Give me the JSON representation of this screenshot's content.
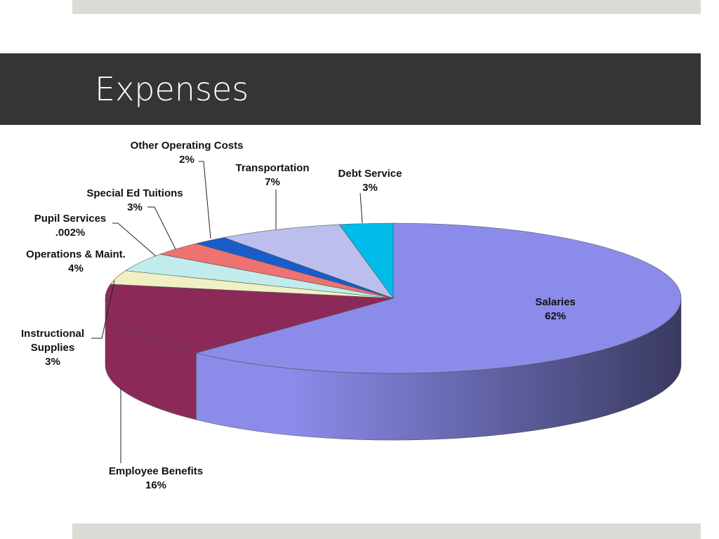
{
  "chart_data": {
    "type": "pie",
    "title": "Expenses",
    "categories": [
      "Salaries",
      "Employee Benefits",
      "Instructional Supplies",
      "Operations & Maint.",
      "Pupil Services",
      "Special Ed Tuitions",
      "Other Operating Costs",
      "Transportation",
      "Debt Service"
    ],
    "values": [
      62,
      16,
      3,
      4,
      0.002,
      3,
      2,
      7,
      3
    ],
    "value_labels": [
      "62%",
      "16%",
      "3%",
      "4%",
      ".002%",
      "3%",
      "2%",
      "7%",
      "3%"
    ],
    "colors": [
      "#8b8bea",
      "#8b2a58",
      "#f0f0c4",
      "#c2ecec",
      "#7a5ca8",
      "#ee7272",
      "#1a5cc8",
      "#bcbfee",
      "#00bce8"
    ]
  }
}
